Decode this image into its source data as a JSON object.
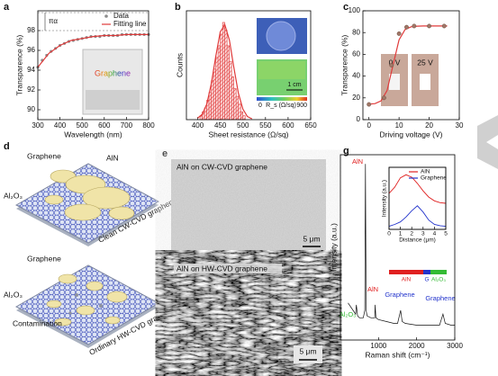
{
  "panel_labels": [
    "a",
    "b",
    "c",
    "d",
    "e",
    "f",
    "g"
  ],
  "chart_data": [
    {
      "type": "line",
      "xlabel": "Wavelength (nm)",
      "ylabel": "Transparence (%)",
      "xlim": [
        300,
        800
      ],
      "xticks": [
        300,
        400,
        500,
        600,
        700,
        800
      ],
      "ylim": [
        89,
        100
      ],
      "yticks": [
        90,
        92,
        94,
        96,
        98
      ],
      "legend": "upper right",
      "annotation": "πα",
      "inset_text": "Graphene",
      "series": [
        {
          "name": "Data",
          "type": "scatter",
          "color": "#8c8c8c",
          "x": [
            300,
            320,
            340,
            360,
            380,
            400,
            420,
            440,
            460,
            480,
            500,
            520,
            540,
            560,
            580,
            600,
            620,
            640,
            660,
            680,
            700,
            720,
            740,
            760,
            780,
            800
          ],
          "values": [
            94.3,
            95.0,
            95.5,
            95.9,
            96.2,
            96.5,
            96.7,
            96.9,
            97.0,
            97.1,
            97.2,
            97.3,
            97.4,
            97.4,
            97.4,
            97.5,
            97.5,
            97.5,
            97.5,
            97.6,
            97.6,
            97.6,
            97.6,
            97.6,
            97.6,
            97.6
          ]
        },
        {
          "name": "Fitting line",
          "type": "line",
          "color": "#e03a3a",
          "x": [
            300,
            350,
            400,
            450,
            500,
            550,
            600,
            650,
            700,
            750,
            800
          ],
          "values": [
            94.3,
            95.7,
            96.5,
            97.0,
            97.2,
            97.4,
            97.5,
            97.5,
            97.6,
            97.6,
            97.6
          ]
        }
      ]
    },
    {
      "type": "histogram",
      "xlabel": "Sheet resistance (Ω/sq)",
      "ylabel": "Counts",
      "xlim": [
        375,
        650
      ],
      "xticks": [
        400,
        450,
        500,
        550,
        600,
        650
      ],
      "ylim": [
        0,
        28
      ],
      "color": "#e03a3a",
      "bins": [
        405,
        410,
        415,
        420,
        425,
        430,
        435,
        440,
        445,
        450,
        455,
        460,
        465,
        470,
        475,
        480,
        485,
        490,
        495,
        500,
        505
      ],
      "values": [
        1,
        2,
        3,
        5,
        7,
        10,
        13,
        16,
        19,
        22,
        25,
        23,
        19,
        15,
        11,
        8,
        6,
        4,
        2,
        1
      ],
      "fit": {
        "x": [
          400,
          410,
          420,
          430,
          440,
          450,
          460,
          470,
          480,
          490,
          500,
          510,
          520
        ],
        "values": [
          0.4,
          1.4,
          4.0,
          9.2,
          16.3,
          22.6,
          24.4,
          20.5,
          13.4,
          6.8,
          2.7,
          0.8,
          0.2
        ]
      },
      "inset_scale": "1 cm",
      "colorbar_label": "R_s (Ω/sq)",
      "colorbar_min": 0,
      "colorbar_max": 900
    },
    {
      "type": "line",
      "xlabel": "Driving voltage (V)",
      "ylabel": "Transparence (%)",
      "xlim": [
        -2,
        30
      ],
      "xticks": [
        0,
        10,
        20,
        30
      ],
      "ylim": [
        0,
        100
      ],
      "yticks": [
        0,
        20,
        40,
        60,
        80,
        100
      ],
      "photo_labels": [
        "0 V",
        "25 V"
      ],
      "series": [
        {
          "type": "line",
          "color": "#e03a3a",
          "x": [
            0,
            2,
            4,
            6,
            8,
            10,
            12,
            14,
            16,
            18,
            20,
            22,
            24,
            26
          ],
          "values": [
            14.2,
            14.7,
            17.2,
            26.7,
            50,
            73.3,
            82.8,
            85.3,
            85.9,
            86,
            86,
            86,
            86,
            86
          ]
        },
        {
          "type": "scatter",
          "color": "#a07868",
          "x": [
            0,
            5,
            7.5,
            10,
            12.5,
            15,
            20,
            25
          ],
          "values": [
            14,
            20,
            50,
            79,
            85,
            86,
            86,
            86
          ]
        }
      ]
    },
    {
      "type": "line",
      "xlabel": "Raman shift (cm⁻¹)",
      "ylabel": "Intensity (a.u.)",
      "xlim": [
        0,
        3000
      ],
      "xticks": [
        1000,
        2000,
        3000
      ],
      "ylim": [
        0,
        100
      ],
      "annotations": [
        {
          "text": "AlN",
          "color": "#e02020"
        },
        {
          "text": "AlN",
          "color": "#e02020"
        },
        {
          "text": "Al₂O₃",
          "color": "#33bb33"
        },
        {
          "text": "Graphene",
          "color": "#2233cc"
        },
        {
          "text": "Graphene",
          "color": "#2233cc"
        }
      ],
      "series": [
        {
          "type": "line",
          "color": "#111111",
          "x": [
            200,
            300,
            400,
            418,
            450,
            500,
            600,
            640,
            657,
            675,
            700,
            800,
            900,
            912,
            930,
            1000,
            1200,
            1400,
            1500,
            1580,
            1620,
            1700,
            2000,
            2400,
            2600,
            2690,
            2750,
            2900,
            3000
          ],
          "values": [
            20,
            17,
            14,
            19,
            13,
            12,
            12,
            16,
            95,
            16,
            13,
            12,
            12,
            19,
            12,
            11,
            10,
            9,
            9,
            16,
            10,
            9,
            8,
            8,
            8,
            14,
            9,
            8,
            8
          ]
        }
      ]
    },
    {
      "type": "line",
      "xlabel": "Distance (μm)",
      "ylabel": "Intensity (a.u.)",
      "xlim": [
        0,
        5
      ],
      "xticks": [
        0,
        1,
        2,
        3,
        4,
        5
      ],
      "ylim": [
        0,
        100
      ],
      "legend": "upper right",
      "colorbar_labels": [
        {
          "text": "AlN",
          "color": "#e02020"
        },
        {
          "text": "G",
          "color": "#2233cc"
        },
        {
          "text": "Al₂O₃",
          "color": "#33bb33"
        }
      ],
      "series": [
        {
          "name": "AlN",
          "type": "line",
          "color": "#e02020",
          "x": [
            0,
            0.5,
            1,
            1.5,
            2,
            2.5,
            3,
            3.5,
            4,
            4.5,
            5
          ],
          "values": [
            58,
            68,
            83,
            88,
            84,
            74,
            62,
            52,
            46,
            43,
            42
          ]
        },
        {
          "name": "Graphene",
          "type": "line",
          "color": "#2233cc",
          "x": [
            0,
            0.5,
            1,
            1.5,
            2,
            2.5,
            3,
            3.5,
            4,
            4.5,
            5
          ],
          "values": [
            5,
            8,
            12,
            20,
            30,
            38,
            28,
            15,
            8,
            6,
            5
          ]
        }
      ]
    }
  ],
  "diagram": {
    "top": {
      "labels": [
        "Graphene",
        "AlN",
        "Al₂O₃"
      ],
      "caption": "Clean CW-CVD graphene"
    },
    "bottom": {
      "labels": [
        "Graphene",
        "Al₂O₃",
        "Contamination"
      ],
      "caption": "Ordinary HW-CVD graphene"
    }
  },
  "images": [
    {
      "caption": "AlN on CW-CVD graphene",
      "scale": "5 μm"
    },
    {
      "caption": "AlN on HW-CVD graphene",
      "scale": "5 μm"
    }
  ]
}
